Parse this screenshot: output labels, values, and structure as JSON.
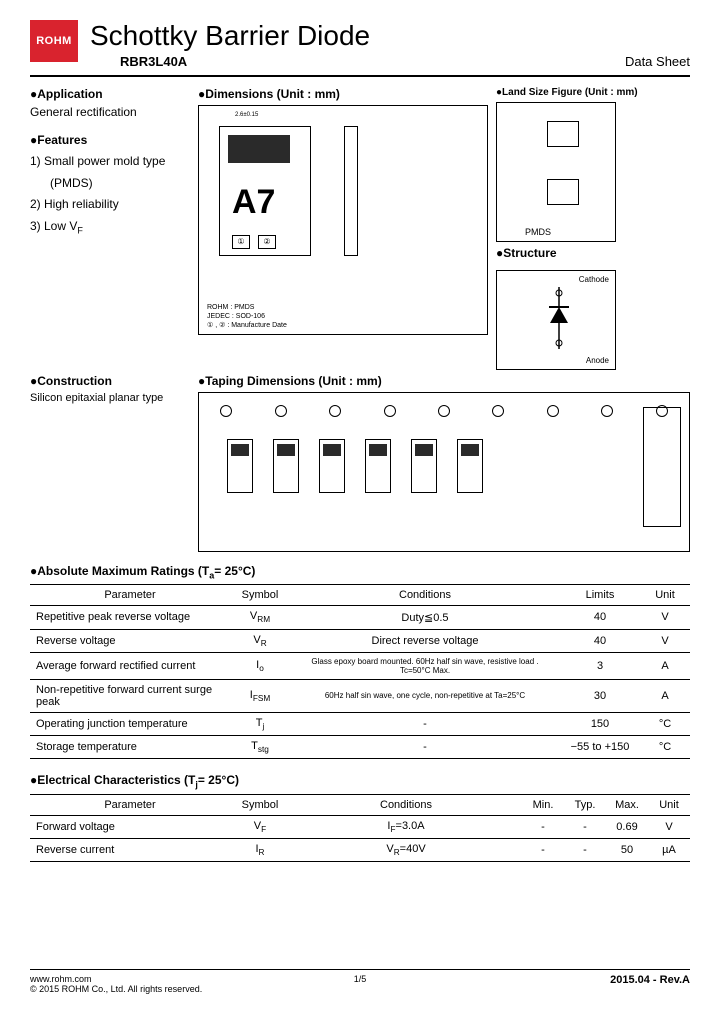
{
  "logo": {
    "brand": "ROHM"
  },
  "header": {
    "title": "Schottky Barrier Diode",
    "part_number": "RBR3L40A",
    "right": "Data Sheet"
  },
  "sections": {
    "application": {
      "title": "●Application",
      "text": "General rectification"
    },
    "features": {
      "title": "●Features",
      "items": [
        "1) Small power mold type",
        "      (PMDS)",
        "2) High reliability",
        "3) Low V"
      ],
      "item3_sub": "F"
    },
    "dimensions": {
      "title": "●Dimensions (Unit : mm)",
      "marking": "A7",
      "pads": [
        "①",
        "②"
      ],
      "meta1": "ROHM : PMDS",
      "meta2": "JEDEC : SOD-106",
      "meta3": "① , ② : Manufacture Date",
      "top_dim": "2.6±0.15"
    },
    "land": {
      "title": "●Land Size Figure (Unit : mm)",
      "label": "PMDS"
    },
    "structure": {
      "title": "●Structure",
      "cathode": "Cathode",
      "anode": "Anode"
    },
    "construction": {
      "title": "●Construction",
      "text": "Silicon epitaxial planar type"
    },
    "taping": {
      "title": "●Taping Dimensions (Unit : mm)"
    }
  },
  "abs_max": {
    "title": "●Absolute Maximum Ratings (T",
    "title_sub": "a",
    "title_rest": "= 25°C)",
    "headers": [
      "Parameter",
      "Symbol",
      "Conditions",
      "Limits",
      "Unit"
    ],
    "rows": [
      {
        "param": "Repetitive peak reverse voltage",
        "sym": "V",
        "sym_sub": "RM",
        "cond": "Duty≦0.5",
        "limit": "40",
        "unit": "V"
      },
      {
        "param": "Reverse voltage",
        "sym": "V",
        "sym_sub": "R",
        "cond": "Direct reverse voltage",
        "limit": "40",
        "unit": "V"
      },
      {
        "param": "Average forward rectified current",
        "sym": "I",
        "sym_sub": "o",
        "cond": "Glass epoxy board mounted. 60Hz half sin wave, resistive load . Tc=50°C Max.",
        "limit": "3",
        "unit": "A"
      },
      {
        "param": "Non-repetitive forward current surge peak",
        "sym": "I",
        "sym_sub": "FSM",
        "cond": "60Hz half sin wave, one cycle, non-repetitive at Ta=25°C",
        "limit": "30",
        "unit": "A"
      },
      {
        "param": "Operating junction temperature",
        "sym": "T",
        "sym_sub": "j",
        "cond": "-",
        "limit": "150",
        "unit": "°C"
      },
      {
        "param": "Storage temperature",
        "sym": "T",
        "sym_sub": "stg",
        "cond": "-",
        "limit": "−55 to +150",
        "unit": "°C"
      }
    ]
  },
  "elec": {
    "title": "●Electrical Characteristics (T",
    "title_sub": "j",
    "title_rest": "= 25°C)",
    "headers": [
      "Parameter",
      "Symbol",
      "Conditions",
      "Min.",
      "Typ.",
      "Max.",
      "Unit"
    ],
    "rows": [
      {
        "param": "Forward voltage",
        "sym": "V",
        "sym_sub": "F",
        "cond_pre": "I",
        "cond_sub": "F",
        "cond_post": "=3.0A",
        "min": "-",
        "typ": "-",
        "max": "0.69",
        "unit": "V"
      },
      {
        "param": "Reverse current",
        "sym": "I",
        "sym_sub": "R",
        "cond_pre": "V",
        "cond_sub": "R",
        "cond_post": "=40V",
        "min": "-",
        "typ": "-",
        "max": "50",
        "unit": "µA"
      }
    ]
  },
  "footer": {
    "url": "www.rohm.com",
    "copyright": "© 2015  ROHM Co., Ltd. All rights reserved.",
    "page": "1/5",
    "rev": "2015.04 -  Rev.A"
  }
}
